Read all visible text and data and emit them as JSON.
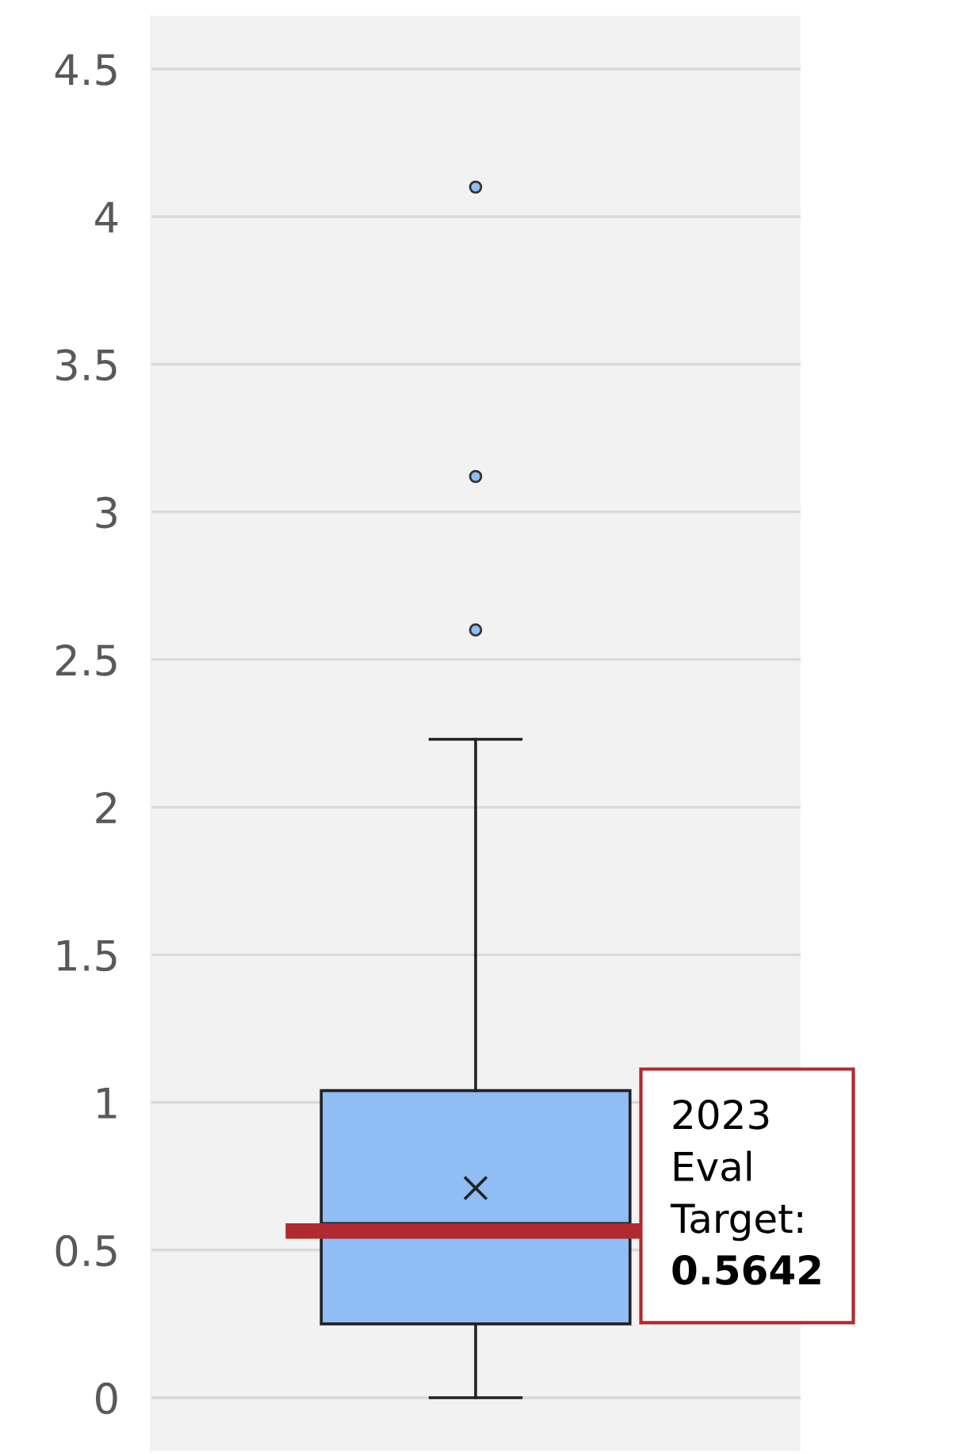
{
  "chart_data": {
    "type": "box",
    "categories": [
      null
    ],
    "series": [
      {
        "color": "#8fbdf4",
        "boxes": [
          {
            "low": 0,
            "q1": 0.25,
            "median": 0.59,
            "q3": 1.04,
            "high": 2.23,
            "mean": 0.71,
            "outliers": [
              2.6,
              3.12,
              4.1
            ]
          }
        ]
      }
    ],
    "ylim": [
      -0.18,
      4.68
    ],
    "yticks": [
      0,
      0.5,
      1,
      1.5,
      2,
      2.5,
      3,
      3.5,
      4,
      4.5
    ],
    "grid": "y",
    "ref_lines": [
      {
        "axis": "y",
        "value": 0.5642,
        "label": "2023 Eval Target: 0.5642",
        "color": "#b02a30"
      }
    ]
  }
}
